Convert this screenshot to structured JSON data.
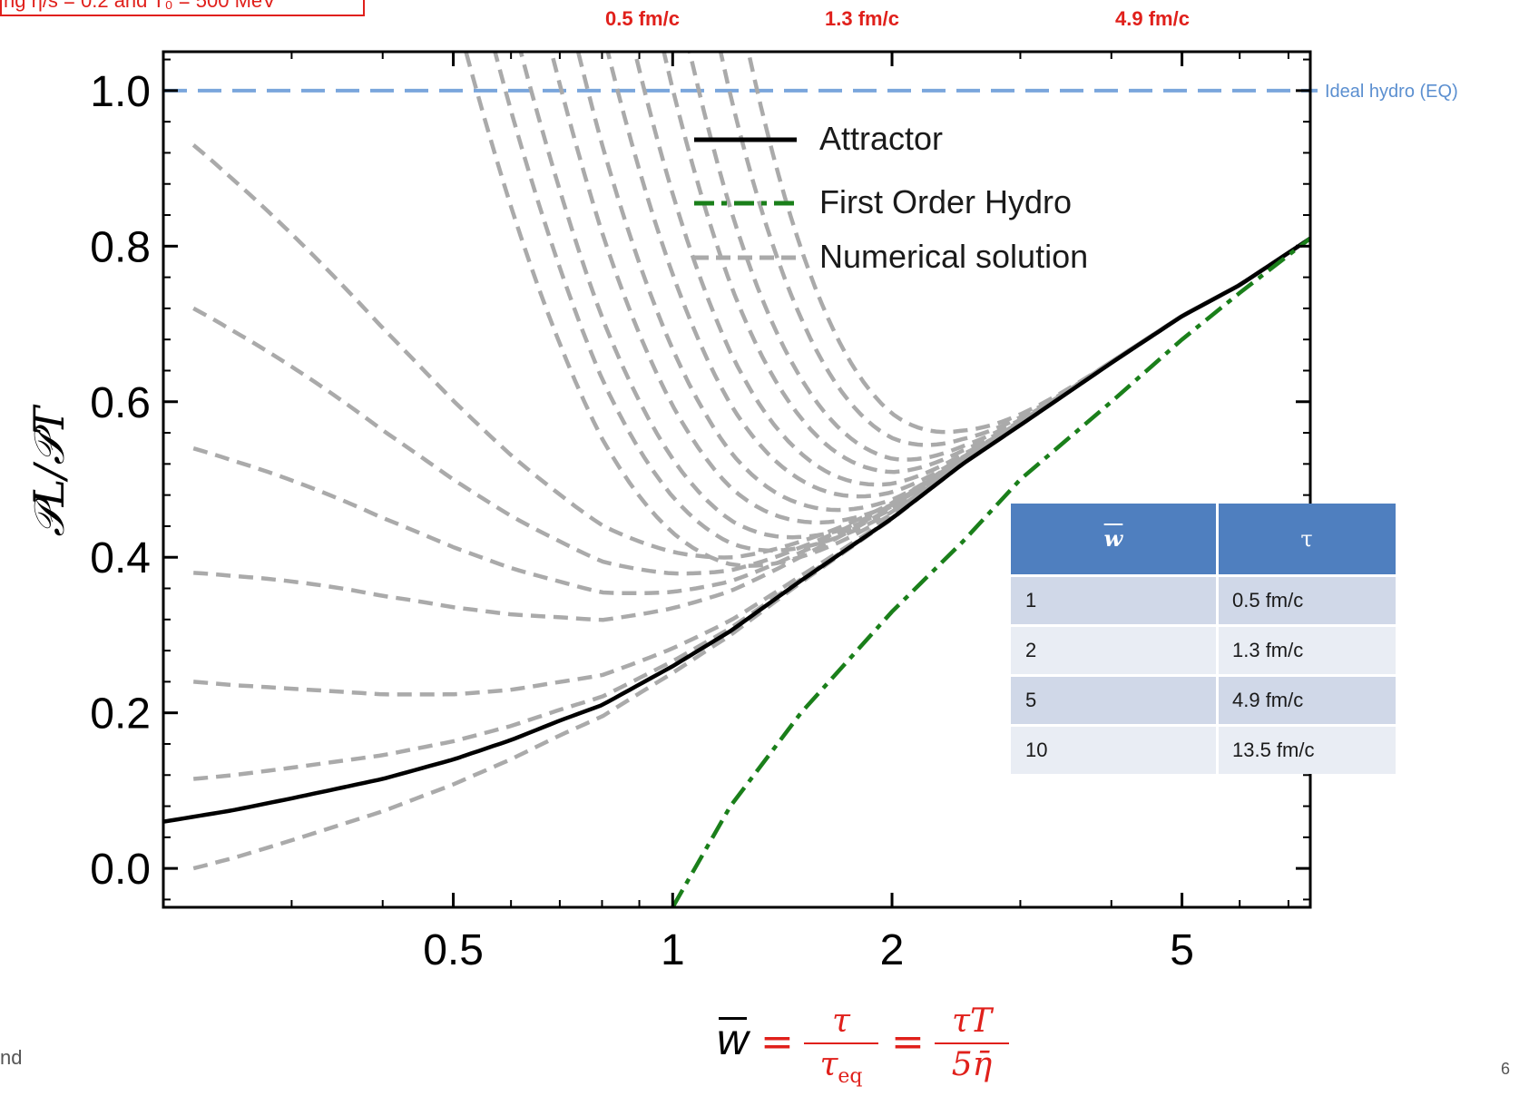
{
  "header": {
    "note": "ng η/s = 0.2 and T₀ = 500 MeV",
    "tau_marks": [
      "0.5 fm/c",
      "1.3 fm/c",
      "4.9 fm/c"
    ]
  },
  "side_label": "Ideal hydro (EQ)",
  "footer": {
    "left": "nd",
    "right": "6"
  },
  "xlabel": {
    "w": "w",
    "eq": "=",
    "frac1_num": "τ",
    "frac1_den": "τ",
    "frac1_sub": "eq",
    "frac2_num": "τT",
    "frac2_den": "5η̄"
  },
  "table": {
    "headers": [
      "w",
      "τ"
    ],
    "rows": [
      [
        "1",
        "0.5 fm/c"
      ],
      [
        "2",
        "1.3 fm/c"
      ],
      [
        "5",
        "4.9 fm/c"
      ],
      [
        "10",
        "13.5 fm/c"
      ]
    ]
  },
  "colors": {
    "attractor": "#000000",
    "first_order": "#1a7f1a",
    "numerical": "#aaaaaa",
    "ideal": "#7aa6dc",
    "accent": "#e0201b",
    "table_head": "#4f7fbf"
  },
  "chart_data": {
    "type": "line",
    "ylabel": "𝒫L/𝒫T",
    "xscale": "log",
    "xlim": [
      0.2,
      7.5
    ],
    "ylim": [
      -0.05,
      1.05
    ],
    "xticks": [
      0.5,
      1,
      2,
      5
    ],
    "xtick_labels": [
      "0.5",
      "1",
      "2",
      "5"
    ],
    "yticks": [
      0,
      0.2,
      0.4,
      0.6,
      0.8,
      1.0
    ],
    "ytick_labels": [
      "0.0",
      "0.2",
      "0.4",
      "0.6",
      "0.8",
      "1.0"
    ],
    "legend": [
      "Attractor",
      "First Order Hydro",
      "Numerical solution"
    ],
    "legend_position": "top-right",
    "ideal_line": 1.0,
    "attractor": {
      "x": [
        0.2,
        0.25,
        0.3,
        0.4,
        0.5,
        0.6,
        0.7,
        0.8,
        1.0,
        1.2,
        1.5,
        2.0,
        2.5,
        3.0,
        4.0,
        5.0,
        6.0,
        7.5
      ],
      "y": [
        0.06,
        0.075,
        0.09,
        0.115,
        0.14,
        0.165,
        0.19,
        0.21,
        0.26,
        0.305,
        0.37,
        0.45,
        0.52,
        0.57,
        0.65,
        0.71,
        0.75,
        0.81
      ]
    },
    "first_order": {
      "x": [
        1.0,
        1.2,
        1.5,
        2.0,
        2.5,
        3.0,
        4.0,
        5.0,
        6.0,
        7.5
      ],
      "y": [
        -0.05,
        0.08,
        0.2,
        0.33,
        0.42,
        0.5,
        0.6,
        0.68,
        0.74,
        0.81
      ]
    },
    "numerical_solutions": [
      {
        "x0": 0.22,
        "y0": 0.0
      },
      {
        "x0": 0.22,
        "y0": 0.115
      },
      {
        "x0": 0.22,
        "y0": 0.24
      },
      {
        "x0": 0.22,
        "y0": 0.38
      },
      {
        "x0": 0.22,
        "y0": 0.54
      },
      {
        "x0": 0.22,
        "y0": 0.72
      },
      {
        "x0": 0.22,
        "y0": 0.93
      },
      {
        "x0": 0.24,
        "y0": 1.05
      },
      {
        "x0": 0.27,
        "y0": 1.05
      },
      {
        "x0": 0.3,
        "y0": 1.05
      },
      {
        "x0": 0.34,
        "y0": 1.05
      },
      {
        "x0": 0.38,
        "y0": 1.05
      },
      {
        "x0": 0.43,
        "y0": 1.05
      },
      {
        "x0": 0.48,
        "y0": 1.05
      },
      {
        "x0": 0.54,
        "y0": 1.05
      },
      {
        "x0": 0.6,
        "y0": 1.05
      },
      {
        "x0": 0.68,
        "y0": 1.05
      },
      {
        "x0": 0.76,
        "y0": 1.05
      }
    ]
  }
}
